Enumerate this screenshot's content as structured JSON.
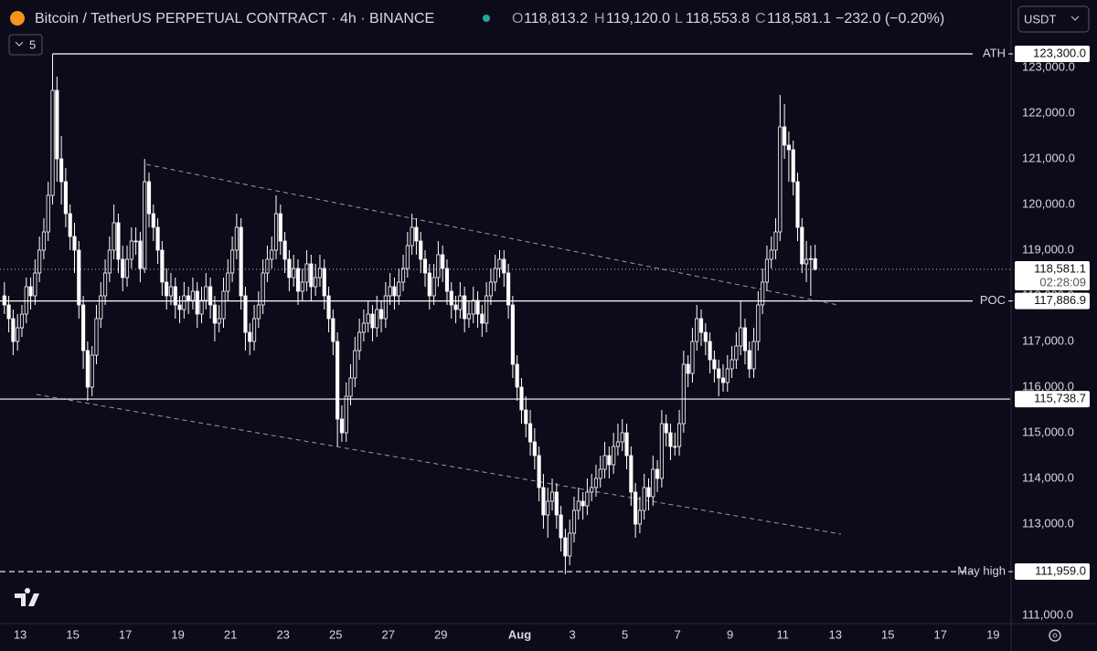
{
  "header": {
    "symbol": "Bitcoin / TetherUS PERPETUAL CONTRACT · 4h · BINANCE",
    "o_label": "O",
    "o": "118,813.2",
    "h_label": "H",
    "h": "119,120.0",
    "l_label": "L",
    "l": "118,553.8",
    "c_label": "C",
    "c": "118,581.1",
    "change": "−232.0 (−0.20%)",
    "currency": "USDT",
    "indicators": "5"
  },
  "chart_data": {
    "type": "candlestick",
    "ylim": [
      110820,
      123680
    ],
    "yticks": [
      {
        "value": 111000,
        "label": "111,000.0"
      },
      {
        "value": 112000,
        "label": "112,000.0"
      },
      {
        "value": 113000,
        "label": "113,000.0"
      },
      {
        "value": 114000,
        "label": "114,000.0"
      },
      {
        "value": 115000,
        "label": "115,000.0"
      },
      {
        "value": 116000,
        "label": "116,000.0"
      },
      {
        "value": 117000,
        "label": "117,000.0"
      },
      {
        "value": 118000,
        "label": "118,000.0"
      },
      {
        "value": 119000,
        "label": "119,000.0"
      },
      {
        "value": 120000,
        "label": "120,000.0"
      },
      {
        "value": 121000,
        "label": "121,000.0"
      },
      {
        "value": 122000,
        "label": "122,000.0"
      },
      {
        "value": 123000,
        "label": "123,000.0"
      }
    ],
    "xlim": [
      -1,
      229.5
    ],
    "xticks": [
      {
        "value": 3.6,
        "label": "13"
      },
      {
        "value": 15.6,
        "label": "15"
      },
      {
        "value": 27.6,
        "label": "17"
      },
      {
        "value": 39.6,
        "label": "19"
      },
      {
        "value": 51.6,
        "label": "21"
      },
      {
        "value": 63.6,
        "label": "23"
      },
      {
        "value": 75.6,
        "label": "25"
      },
      {
        "value": 87.6,
        "label": "27"
      },
      {
        "value": 99.6,
        "label": "29"
      },
      {
        "value": 117.6,
        "label": "Aug"
      },
      {
        "value": 129.6,
        "label": "3"
      },
      {
        "value": 141.6,
        "label": "5"
      },
      {
        "value": 153.6,
        "label": "7"
      },
      {
        "value": 165.6,
        "label": "9"
      },
      {
        "value": 177.6,
        "label": "11"
      },
      {
        "value": 189.6,
        "label": "13"
      },
      {
        "value": 201.6,
        "label": "15"
      },
      {
        "value": 213.6,
        "label": "17"
      },
      {
        "value": 225.6,
        "label": "19"
      }
    ],
    "up_color": "#0c0b1a",
    "down_color": "#ffffff",
    "wick_color": "#ffffff",
    "ohlc": [
      [
        118000,
        118300,
        117600,
        117800
      ],
      [
        117800,
        118000,
        117200,
        117500
      ],
      [
        117500,
        117700,
        116700,
        117000
      ],
      [
        117000,
        117600,
        116800,
        117300
      ],
      [
        117300,
        117800,
        117100,
        117600
      ],
      [
        117600,
        118400,
        117400,
        118200
      ],
      [
        118200,
        118400,
        117700,
        118000
      ],
      [
        118000,
        118800,
        117800,
        118500
      ],
      [
        118500,
        119300,
        118300,
        119000
      ],
      [
        119000,
        119700,
        118800,
        119400
      ],
      [
        119400,
        120500,
        119200,
        120200
      ],
      [
        120200,
        123300,
        120000,
        122500
      ],
      [
        122500,
        122800,
        120500,
        121000
      ],
      [
        121000,
        121500,
        120000,
        120500
      ],
      [
        120500,
        120800,
        119500,
        119800
      ],
      [
        119800,
        120000,
        119000,
        119300
      ],
      [
        119300,
        119600,
        118500,
        119000
      ],
      [
        119000,
        119200,
        117500,
        117800
      ],
      [
        117800,
        118000,
        116400,
        116800
      ],
      [
        116800,
        117000,
        115700,
        116000
      ],
      [
        116000,
        116900,
        115800,
        116700
      ],
      [
        116700,
        117800,
        116500,
        117500
      ],
      [
        117500,
        118300,
        117300,
        118000
      ],
      [
        118000,
        118800,
        117800,
        118500
      ],
      [
        118500,
        119300,
        118300,
        119000
      ],
      [
        119000,
        120000,
        118800,
        119600
      ],
      [
        119600,
        119800,
        118500,
        118800
      ],
      [
        118800,
        119100,
        118100,
        118400
      ],
      [
        118400,
        119100,
        118200,
        118800
      ],
      [
        118800,
        119500,
        118600,
        119200
      ],
      [
        119200,
        119500,
        118900,
        119200
      ],
      [
        119200,
        119400,
        118300,
        118600
      ],
      [
        118600,
        121000,
        118500,
        120500
      ],
      [
        120500,
        120700,
        119500,
        119800
      ],
      [
        119800,
        120000,
        119200,
        119500
      ],
      [
        119500,
        119700,
        118700,
        119000
      ],
      [
        119000,
        119200,
        118000,
        118300
      ],
      [
        118300,
        118600,
        117700,
        118000
      ],
      [
        118000,
        118500,
        117800,
        118200
      ],
      [
        118200,
        118400,
        117500,
        117800
      ],
      [
        117800,
        118000,
        117400,
        117700
      ],
      [
        117700,
        118300,
        117500,
        118000
      ],
      [
        118000,
        118200,
        117600,
        117900
      ],
      [
        117900,
        118400,
        117700,
        118100
      ],
      [
        118100,
        118300,
        117300,
        117600
      ],
      [
        117600,
        118200,
        117400,
        117900
      ],
      [
        117900,
        118500,
        117700,
        118200
      ],
      [
        118200,
        118400,
        117500,
        117800
      ],
      [
        117800,
        118000,
        117000,
        117400
      ],
      [
        117400,
        117800,
        117200,
        117500
      ],
      [
        117500,
        118400,
        117300,
        118100
      ],
      [
        118100,
        118800,
        117900,
        118500
      ],
      [
        118500,
        119300,
        118300,
        119000
      ],
      [
        119000,
        119800,
        118800,
        119500
      ],
      [
        119500,
        119700,
        117700,
        118000
      ],
      [
        118000,
        118200,
        116800,
        117200
      ],
      [
        117200,
        117400,
        116700,
        117000
      ],
      [
        117000,
        117800,
        116800,
        117500
      ],
      [
        117500,
        118100,
        117300,
        117800
      ],
      [
        117800,
        118800,
        117600,
        118500
      ],
      [
        118500,
        119100,
        118300,
        118800
      ],
      [
        118800,
        119300,
        118600,
        119000
      ],
      [
        119000,
        120200,
        118800,
        119800
      ],
      [
        119800,
        120000,
        118900,
        119200
      ],
      [
        119200,
        119400,
        118500,
        118800
      ],
      [
        118800,
        119000,
        118100,
        118400
      ],
      [
        118400,
        118900,
        118200,
        118600
      ],
      [
        118600,
        118800,
        117800,
        118100
      ],
      [
        118100,
        118600,
        117900,
        118300
      ],
      [
        118300,
        119000,
        118100,
        118700
      ],
      [
        118700,
        118900,
        117900,
        118200
      ],
      [
        118200,
        118700,
        118000,
        118400
      ],
      [
        118400,
        118900,
        118200,
        118600
      ],
      [
        118600,
        118800,
        117700,
        118000
      ],
      [
        118000,
        118200,
        117200,
        117500
      ],
      [
        117500,
        117700,
        116700,
        117000
      ],
      [
        117000,
        117200,
        114700,
        115300
      ],
      [
        115300,
        115600,
        114800,
        115000
      ],
      [
        115000,
        116100,
        114800,
        115800
      ],
      [
        115800,
        116500,
        115600,
        116200
      ],
      [
        116200,
        117100,
        116000,
        116800
      ],
      [
        116800,
        117500,
        116600,
        117200
      ],
      [
        117200,
        117700,
        117000,
        117400
      ],
      [
        117400,
        117900,
        117200,
        117600
      ],
      [
        117600,
        117800,
        117000,
        117300
      ],
      [
        117300,
        118000,
        117100,
        117700
      ],
      [
        117700,
        117900,
        117200,
        117500
      ],
      [
        117500,
        118300,
        117300,
        118000
      ],
      [
        118000,
        118500,
        117800,
        118200
      ],
      [
        118200,
        118400,
        117700,
        118000
      ],
      [
        118000,
        118600,
        117800,
        118300
      ],
      [
        118300,
        118900,
        118100,
        118600
      ],
      [
        118600,
        119400,
        118400,
        119100
      ],
      [
        119100,
        119800,
        118900,
        119500
      ],
      [
        119500,
        119700,
        118900,
        119200
      ],
      [
        119200,
        119400,
        118500,
        118800
      ],
      [
        118800,
        119000,
        118200,
        118500
      ],
      [
        118500,
        118700,
        117700,
        118000
      ],
      [
        118000,
        118700,
        117800,
        118400
      ],
      [
        118400,
        119200,
        118200,
        118900
      ],
      [
        118900,
        119100,
        118300,
        118600
      ],
      [
        118600,
        118800,
        117800,
        118100
      ],
      [
        118100,
        118300,
        117500,
        117800
      ],
      [
        117800,
        118000,
        117400,
        117700
      ],
      [
        117700,
        118300,
        117500,
        118000
      ],
      [
        118000,
        118200,
        117200,
        117500
      ],
      [
        117500,
        117900,
        117300,
        117600
      ],
      [
        117600,
        118200,
        117400,
        117900
      ],
      [
        117900,
        118100,
        117300,
        117600
      ],
      [
        117600,
        117800,
        117100,
        117400
      ],
      [
        117400,
        118300,
        117200,
        118000
      ],
      [
        118000,
        118600,
        117800,
        118300
      ],
      [
        118300,
        118900,
        118100,
        118600
      ],
      [
        118600,
        119000,
        118400,
        118800
      ],
      [
        118800,
        119000,
        118200,
        118500
      ],
      [
        118500,
        118700,
        117500,
        117800
      ],
      [
        117800,
        118000,
        116200,
        116500
      ],
      [
        116500,
        116700,
        115700,
        116000
      ],
      [
        116000,
        116200,
        115200,
        115500
      ],
      [
        115500,
        115800,
        114900,
        115200
      ],
      [
        115200,
        115500,
        114500,
        114800
      ],
      [
        114800,
        115100,
        114200,
        114500
      ],
      [
        114500,
        114700,
        113500,
        113800
      ],
      [
        113800,
        114100,
        112900,
        113200
      ],
      [
        113200,
        113800,
        112700,
        113500
      ],
      [
        113500,
        114000,
        113300,
        113700
      ],
      [
        113700,
        113900,
        112900,
        113200
      ],
      [
        113200,
        113400,
        112400,
        112700
      ],
      [
        112700,
        112900,
        111900,
        112300
      ],
      [
        112300,
        113100,
        112100,
        112800
      ],
      [
        112800,
        113600,
        112600,
        113300
      ],
      [
        113300,
        113800,
        113100,
        113500
      ],
      [
        113500,
        113700,
        113100,
        113400
      ],
      [
        113400,
        114000,
        113200,
        113700
      ],
      [
        113700,
        114100,
        113500,
        113800
      ],
      [
        113800,
        114300,
        113600,
        114000
      ],
      [
        114000,
        114500,
        113800,
        114200
      ],
      [
        114200,
        114800,
        114000,
        114500
      ],
      [
        114500,
        114700,
        114000,
        114300
      ],
      [
        114300,
        115000,
        114100,
        114700
      ],
      [
        114700,
        115200,
        114500,
        114800
      ],
      [
        114800,
        115300,
        114600,
        115000
      ],
      [
        115000,
        115200,
        114200,
        114500
      ],
      [
        114500,
        114700,
        113400,
        113700
      ],
      [
        113700,
        113900,
        112700,
        113000
      ],
      [
        113000,
        113600,
        112800,
        113300
      ],
      [
        113300,
        114100,
        113100,
        113800
      ],
      [
        113800,
        114000,
        113300,
        113600
      ],
      [
        113600,
        114500,
        113400,
        114200
      ],
      [
        114200,
        114400,
        113700,
        114000
      ],
      [
        114000,
        115500,
        113800,
        115200
      ],
      [
        115200,
        115400,
        114700,
        115000
      ],
      [
        115000,
        115200,
        114400,
        114700
      ],
      [
        114700,
        115000,
        114500,
        114700
      ],
      [
        114700,
        115500,
        114500,
        115200
      ],
      [
        115200,
        116800,
        115000,
        116500
      ],
      [
        116500,
        116700,
        116000,
        116300
      ],
      [
        116300,
        117300,
        116100,
        117000
      ],
      [
        117000,
        117800,
        116800,
        117500
      ],
      [
        117500,
        117700,
        116900,
        117200
      ],
      [
        117200,
        117400,
        116700,
        117000
      ],
      [
        117000,
        117200,
        116300,
        116600
      ],
      [
        116600,
        116800,
        116100,
        116400
      ],
      [
        116400,
        116600,
        115800,
        116200
      ],
      [
        116200,
        116500,
        115900,
        116100
      ],
      [
        116100,
        116700,
        115900,
        116400
      ],
      [
        116400,
        116900,
        116200,
        116600
      ],
      [
        116600,
        117200,
        116400,
        116900
      ],
      [
        116900,
        117900,
        116700,
        117300
      ],
      [
        117300,
        117500,
        116500,
        116800
      ],
      [
        116800,
        117000,
        116200,
        116400
      ],
      [
        116400,
        117300,
        116200,
        117000
      ],
      [
        117000,
        118100,
        116800,
        117800
      ],
      [
        117800,
        118600,
        117600,
        118300
      ],
      [
        118300,
        119100,
        118100,
        118800
      ],
      [
        118800,
        119300,
        118600,
        119000
      ],
      [
        119000,
        119700,
        118800,
        119400
      ],
      [
        119400,
        122400,
        119200,
        121700
      ],
      [
        121700,
        122200,
        121000,
        121300
      ],
      [
        121300,
        121600,
        120500,
        121200
      ],
      [
        121200,
        121400,
        120200,
        120500
      ],
      [
        120500,
        120700,
        119200,
        119500
      ],
      [
        119500,
        119700,
        118500,
        118700
      ],
      [
        118700,
        119200,
        118300,
        118800
      ],
      [
        118800,
        119100,
        118000,
        118813.2
      ],
      [
        118813.2,
        119120,
        118553.8,
        118581.1
      ]
    ],
    "levels": [
      {
        "label": "ATH",
        "x0": 11,
        "price": {
          "value": 123300,
          "label": "123,300.0"
        },
        "style": "solid"
      },
      {
        "label": "POC",
        "price": {
          "value": 117886.9,
          "label": "117,886.9"
        },
        "style": "solid"
      },
      {
        "price": {
          "value": 115738.7,
          "label": "115,738.7"
        },
        "style": "solid"
      },
      {
        "label": "May high",
        "price": {
          "value": 111959,
          "label": "111,959.0"
        },
        "style": "dashed"
      }
    ],
    "last_price": {
      "value": 118581.1,
      "label": "118,581.1"
    },
    "countdown": "02:28:09",
    "trendlines": [
      {
        "x": [
          32.4,
          190.2
        ],
        "y": [
          120880,
          117800
        ]
      },
      {
        "x": [
          7.3,
          190.9
        ],
        "y": [
          115840,
          112780
        ]
      }
    ]
  }
}
